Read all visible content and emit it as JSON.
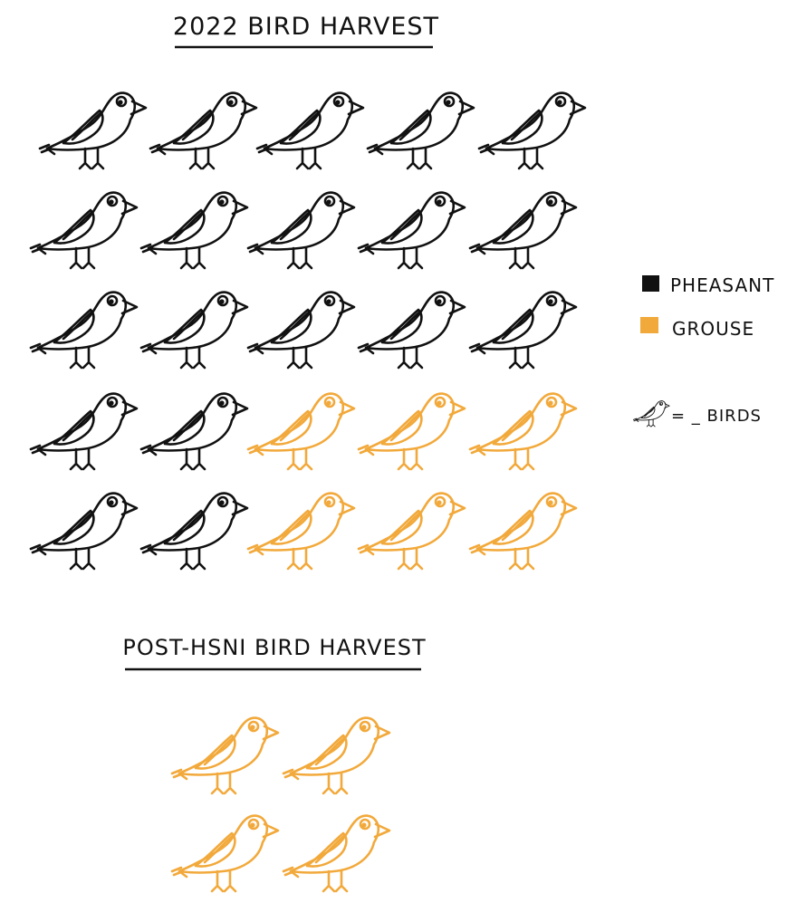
{
  "colors": {
    "pheasant": "#111111",
    "grouse": "#F2A93B",
    "rule": "#111111",
    "text": "#111111"
  },
  "icon": "bird-icon",
  "chart_data": [
    {
      "type": "pictogram",
      "title": "2022 BIRD HARVEST",
      "rows": [
        [
          "pheasant",
          "pheasant",
          "pheasant",
          "pheasant",
          "pheasant"
        ],
        [
          "pheasant",
          "pheasant",
          "pheasant",
          "pheasant",
          "pheasant"
        ],
        [
          "pheasant",
          "pheasant",
          "pheasant",
          "pheasant",
          "pheasant"
        ],
        [
          "pheasant",
          "pheasant",
          "grouse",
          "grouse",
          "grouse"
        ],
        [
          "pheasant",
          "pheasant",
          "grouse",
          "grouse",
          "grouse"
        ]
      ],
      "counts": {
        "pheasant": 19,
        "grouse": 6
      }
    },
    {
      "type": "pictogram",
      "title": "POST-HSNI BIRD HARVEST",
      "rows": [
        [
          "grouse",
          "grouse"
        ],
        [
          "grouse",
          "grouse"
        ]
      ],
      "counts": {
        "pheasant": 0,
        "grouse": 4
      }
    }
  ],
  "legend": {
    "items": [
      {
        "key": "pheasant",
        "label": "PHEASANT"
      },
      {
        "key": "grouse",
        "label": "GROUSE"
      }
    ],
    "unit_text": "= _ BIRDS"
  }
}
